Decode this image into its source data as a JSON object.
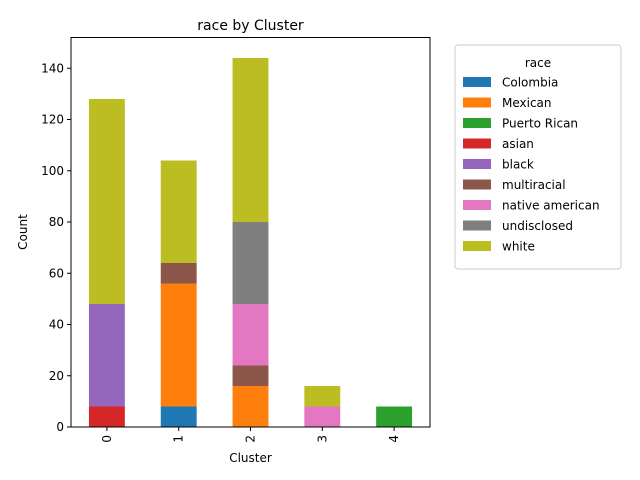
{
  "chart_data": {
    "type": "bar",
    "stacked": true,
    "title": "race by Cluster",
    "xlabel": "Cluster",
    "ylabel": "Count",
    "categories": [
      "0",
      "1",
      "2",
      "3",
      "4"
    ],
    "ylim": [
      0,
      152
    ],
    "yticks": [
      0,
      20,
      40,
      60,
      80,
      100,
      120,
      140
    ],
    "grid": false,
    "legend": {
      "title": "race",
      "placement": "outside-right-top"
    },
    "series": [
      {
        "name": "Colombia",
        "color": "#1f77b4",
        "values": [
          0,
          8,
          0,
          0,
          0
        ]
      },
      {
        "name": "Mexican",
        "color": "#ff7f0e",
        "values": [
          0,
          48,
          16,
          0,
          0
        ]
      },
      {
        "name": "Puerto Rican",
        "color": "#2ca02c",
        "values": [
          0,
          0,
          0,
          0,
          8
        ]
      },
      {
        "name": "asian",
        "color": "#d62728",
        "values": [
          8,
          0,
          0,
          0,
          0
        ]
      },
      {
        "name": "black",
        "color": "#9467bd",
        "values": [
          40,
          0,
          0,
          0,
          0
        ]
      },
      {
        "name": "multiracial",
        "color": "#8c564b",
        "values": [
          0,
          8,
          8,
          0,
          0
        ]
      },
      {
        "name": "native american",
        "color": "#e377c2",
        "values": [
          0,
          0,
          24,
          8,
          0
        ]
      },
      {
        "name": "undisclosed",
        "color": "#7f7f7f",
        "values": [
          0,
          0,
          32,
          0,
          0
        ]
      },
      {
        "name": "white",
        "color": "#bcbd22",
        "values": [
          80,
          40,
          64,
          8,
          0
        ]
      }
    ]
  }
}
